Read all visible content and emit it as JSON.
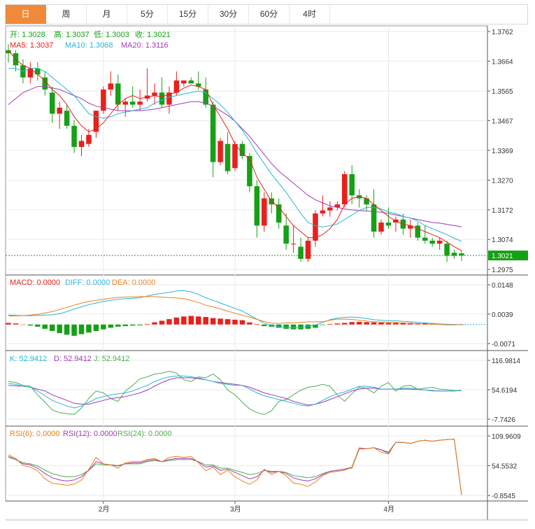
{
  "tabs": [
    {
      "label": "日",
      "active": true
    },
    {
      "label": "周",
      "active": false
    },
    {
      "label": "月",
      "active": false
    },
    {
      "label": "5分",
      "active": false
    },
    {
      "label": "15分",
      "active": false
    },
    {
      "label": "30分",
      "active": false
    },
    {
      "label": "60分",
      "active": false
    },
    {
      "label": "4时",
      "active": false
    }
  ],
  "ohlc_legend": {
    "open": "开: 1.3028",
    "high": "高: 1.3037",
    "low": "低: 1.3003",
    "close": "收: 1.3021"
  },
  "ma_legend": {
    "ma5": "MA5: 1.3037",
    "ma10": "MA10: 1.3068",
    "ma20": "MA20: 1.3116"
  },
  "macd_legend": {
    "macd": "MACD: 0.0000",
    "diff": "DIFF: 0.0000",
    "dea": "DEA: 0.0000"
  },
  "kdj_legend": {
    "k": "K: 52.9412",
    "d": "D: 52.9412",
    "j": "J: 52.9412"
  },
  "rsi_legend": {
    "rsi6": "RSI(6): 0.0000",
    "rsi12": "RSI(12): 0.0000",
    "rsi24": "RSI(24): 0.0000"
  },
  "price_tag": "1.3021",
  "colors": {
    "up": "#e8201c",
    "down": "#16a016",
    "ma5": "#e8201c",
    "ma10": "#27b6d8",
    "ma20": "#a23ab5",
    "tab_active": "#f08a3a",
    "grid": "#e9e9e9"
  },
  "chart_data": [
    {
      "type": "candlestick",
      "title": "",
      "y_ticks": [
        "1.3762",
        "1.3664",
        "1.3565",
        "1.3467",
        "1.3369",
        "1.3270",
        "1.3172",
        "1.3074",
        "1.2975"
      ],
      "x_ticks": [
        "2月",
        "3月",
        "4月"
      ],
      "ylim": [
        1.2975,
        1.3762
      ],
      "last_price": 1.3021,
      "candles": [
        [
          1.37,
          1.372,
          1.366,
          1.369
        ],
        [
          1.369,
          1.37,
          1.363,
          1.365
        ],
        [
          1.365,
          1.367,
          1.359,
          1.361
        ],
        [
          1.361,
          1.366,
          1.359,
          1.364
        ],
        [
          1.364,
          1.366,
          1.36,
          1.362
        ],
        [
          1.361,
          1.363,
          1.355,
          1.357
        ],
        [
          1.356,
          1.358,
          1.346,
          1.349
        ],
        [
          1.349,
          1.353,
          1.344,
          1.351
        ],
        [
          1.35,
          1.352,
          1.344,
          1.345
        ],
        [
          1.345,
          1.347,
          1.336,
          1.338
        ],
        [
          1.338,
          1.342,
          1.335,
          1.34
        ],
        [
          1.339,
          1.344,
          1.338,
          1.342
        ],
        [
          1.343,
          1.35,
          1.341,
          1.35
        ],
        [
          1.35,
          1.358,
          1.349,
          1.357
        ],
        [
          1.357,
          1.363,
          1.355,
          1.359
        ],
        [
          1.359,
          1.362,
          1.35,
          1.352
        ],
        [
          1.352,
          1.354,
          1.348,
          1.353
        ],
        [
          1.353,
          1.358,
          1.351,
          1.352
        ],
        [
          1.352,
          1.357,
          1.35,
          1.353
        ],
        [
          1.354,
          1.364,
          1.353,
          1.355
        ],
        [
          1.355,
          1.359,
          1.352,
          1.356
        ],
        [
          1.356,
          1.361,
          1.351,
          1.352
        ],
        [
          1.352,
          1.358,
          1.349,
          1.356
        ],
        [
          1.356,
          1.363,
          1.355,
          1.36
        ],
        [
          1.359,
          1.36,
          1.358,
          1.36
        ],
        [
          1.36,
          1.361,
          1.359,
          1.359
        ],
        [
          1.359,
          1.363,
          1.357,
          1.358
        ],
        [
          1.357,
          1.361,
          1.351,
          1.352
        ],
        [
          1.352,
          1.353,
          1.328,
          1.333
        ],
        [
          1.333,
          1.341,
          1.332,
          1.34
        ],
        [
          1.339,
          1.343,
          1.329,
          1.33
        ],
        [
          1.331,
          1.34,
          1.33,
          1.339
        ],
        [
          1.339,
          1.34,
          1.334,
          1.335
        ],
        [
          1.335,
          1.336,
          1.323,
          1.325
        ],
        [
          1.325,
          1.327,
          1.308,
          1.312
        ],
        [
          1.312,
          1.323,
          1.31,
          1.321
        ],
        [
          1.321,
          1.323,
          1.316,
          1.319
        ],
        [
          1.319,
          1.321,
          1.311,
          1.313
        ],
        [
          1.312,
          1.316,
          1.304,
          1.306
        ],
        [
          1.306,
          1.312,
          1.303,
          1.306
        ],
        [
          1.305,
          1.308,
          1.3,
          1.301
        ],
        [
          1.301,
          1.308,
          1.3,
          1.307
        ],
        [
          1.307,
          1.317,
          1.305,
          1.316
        ],
        [
          1.316,
          1.322,
          1.315,
          1.317
        ],
        [
          1.317,
          1.32,
          1.315,
          1.318
        ],
        [
          1.318,
          1.32,
          1.317,
          1.319
        ],
        [
          1.319,
          1.33,
          1.318,
          1.329
        ],
        [
          1.329,
          1.332,
          1.319,
          1.322
        ],
        [
          1.322,
          1.324,
          1.318,
          1.321
        ],
        [
          1.321,
          1.322,
          1.317,
          1.319
        ],
        [
          1.319,
          1.324,
          1.308,
          1.31
        ],
        [
          1.31,
          1.314,
          1.309,
          1.313
        ],
        [
          1.313,
          1.318,
          1.311,
          1.312
        ],
        [
          1.313,
          1.315,
          1.31,
          1.314
        ],
        [
          1.314,
          1.316,
          1.309,
          1.311
        ],
        [
          1.311,
          1.314,
          1.308,
          1.312
        ],
        [
          1.312,
          1.313,
          1.307,
          1.308
        ],
        [
          1.308,
          1.312,
          1.306,
          1.307
        ],
        [
          1.307,
          1.308,
          1.305,
          1.306
        ],
        [
          1.306,
          1.308,
          1.304,
          1.307
        ],
        [
          1.306,
          1.307,
          1.3,
          1.302
        ],
        [
          1.303,
          1.304,
          1.301,
          1.302
        ],
        [
          1.3028,
          1.3037,
          1.3003,
          1.3021
        ]
      ],
      "ma5": [
        1.37,
        1.367,
        1.365,
        1.364,
        1.362,
        1.36,
        1.357,
        1.355,
        1.352,
        1.348,
        1.345,
        1.343,
        1.344,
        1.346,
        1.349,
        1.352,
        1.354,
        1.355,
        1.354,
        1.3545,
        1.355,
        1.3545,
        1.3555,
        1.356,
        1.3575,
        1.3585,
        1.358,
        1.357,
        1.352,
        1.348,
        1.344,
        1.339,
        1.336,
        1.334,
        1.328,
        1.324,
        1.32,
        1.318,
        1.315,
        1.312,
        1.31,
        1.308,
        1.308,
        1.309,
        1.311,
        1.314,
        1.319,
        1.321,
        1.3215,
        1.321,
        1.319,
        1.317,
        1.315,
        1.3135,
        1.3125,
        1.312,
        1.311,
        1.31,
        1.309,
        1.308,
        1.3065,
        1.305,
        1.3037
      ],
      "ma10": [
        1.364,
        1.364,
        1.363,
        1.364,
        1.364,
        1.363,
        1.361,
        1.359,
        1.357,
        1.355,
        1.352,
        1.349,
        1.348,
        1.3475,
        1.348,
        1.349,
        1.3495,
        1.35,
        1.3505,
        1.351,
        1.3525,
        1.3535,
        1.3545,
        1.355,
        1.3555,
        1.356,
        1.3565,
        1.356,
        1.354,
        1.352,
        1.3495,
        1.3465,
        1.3435,
        1.34,
        1.336,
        1.3325,
        1.329,
        1.326,
        1.323,
        1.3195,
        1.316,
        1.313,
        1.312,
        1.3115,
        1.312,
        1.3125,
        1.314,
        1.3155,
        1.317,
        1.318,
        1.318,
        1.3175,
        1.3165,
        1.316,
        1.315,
        1.3145,
        1.3135,
        1.312,
        1.311,
        1.31,
        1.309,
        1.3078,
        1.3068
      ],
      "ma20": [
        1.352,
        1.354,
        1.356,
        1.357,
        1.358,
        1.358,
        1.3575,
        1.357,
        1.356,
        1.355,
        1.354,
        1.3525,
        1.3515,
        1.351,
        1.3505,
        1.35,
        1.35,
        1.35,
        1.35,
        1.3502,
        1.3505,
        1.351,
        1.3515,
        1.352,
        1.3525,
        1.353,
        1.353,
        1.3525,
        1.3515,
        1.35,
        1.3485,
        1.3465,
        1.344,
        1.3415,
        1.3385,
        1.3355,
        1.3325,
        1.33,
        1.328,
        1.326,
        1.324,
        1.322,
        1.3205,
        1.3195,
        1.3185,
        1.318,
        1.3175,
        1.3172,
        1.317,
        1.3168,
        1.3166,
        1.3164,
        1.316,
        1.3155,
        1.315,
        1.3145,
        1.314,
        1.3135,
        1.313,
        1.3128,
        1.3124,
        1.312,
        1.3116
      ]
    },
    {
      "type": "bar",
      "title": "MACD",
      "y_ticks": [
        "0.0148",
        "0.0039",
        "-0.0071"
      ],
      "ylim": [
        -0.0071,
        0.0148
      ],
      "macd": [
        0.0006,
        0.0004,
        0.0,
        -0.0004,
        -0.0008,
        -0.0016,
        -0.0024,
        -0.0032,
        -0.0038,
        -0.0042,
        -0.0036,
        -0.003,
        -0.0024,
        -0.0018,
        -0.0012,
        -0.0008,
        -0.0006,
        -0.0004,
        -0.0003,
        0.0002,
        0.0008,
        0.0014,
        0.002,
        0.0026,
        0.003,
        0.0032,
        0.003,
        0.0028,
        0.0024,
        0.0022,
        0.002,
        0.0018,
        0.0016,
        0.0008,
        0.0002,
        -0.0006,
        -0.0008,
        -0.0012,
        -0.0016,
        -0.0018,
        -0.0018,
        -0.0016,
        -0.0012,
        -0.0002,
        0.0002,
        0.0004,
        0.0006,
        0.0009,
        0.001,
        0.0009,
        0.0008,
        0.0007,
        0.0006,
        0.0006,
        0.0007,
        0.0006,
        0.0005,
        0.0005,
        0.0003,
        0.0002,
        0.0002,
        0.0001,
        0.0
      ],
      "diff": [
        0.0035,
        0.0034,
        0.0033,
        0.0033,
        0.0034,
        0.0035,
        0.0036,
        0.004,
        0.0048,
        0.0058,
        0.0066,
        0.0074,
        0.008,
        0.0086,
        0.009,
        0.0094,
        0.0096,
        0.0098,
        0.01,
        0.0106,
        0.0112,
        0.0116,
        0.012,
        0.0125,
        0.0126,
        0.0122,
        0.0112,
        0.01,
        0.009,
        0.008,
        0.007,
        0.006,
        0.005,
        0.0035,
        0.002,
        0.0005,
        -0.0003,
        -0.0008,
        -0.001,
        -0.0012,
        -0.001,
        -0.0006,
        -0.0002,
        0.0008,
        0.0018,
        0.0024,
        0.0026,
        0.0028,
        0.0026,
        0.0022,
        0.0018,
        0.0016,
        0.0014,
        0.0014,
        0.0012,
        0.001,
        0.0008,
        0.0006,
        0.0004,
        0.0002,
        0.0001,
        0.0,
        0.0
      ],
      "dea": [
        0.0032,
        0.0032,
        0.0033,
        0.0035,
        0.0038,
        0.0043,
        0.0048,
        0.0056,
        0.0064,
        0.0072,
        0.008,
        0.0086,
        0.009,
        0.0094,
        0.0098,
        0.0101,
        0.0102,
        0.0103,
        0.0104,
        0.0104,
        0.0104,
        0.0102,
        0.01,
        0.0099,
        0.0096,
        0.009,
        0.0082,
        0.0072,
        0.0066,
        0.0058,
        0.005,
        0.0042,
        0.0034,
        0.0028,
        0.0019,
        0.0011,
        0.0005,
        0.0004,
        0.0006,
        0.0006,
        0.0008,
        0.001,
        0.001,
        0.001,
        0.0016,
        0.002,
        0.002,
        0.0019,
        0.0016,
        0.0013,
        0.001,
        0.0009,
        0.0008,
        0.0008,
        0.0005,
        0.0004,
        0.0003,
        0.0001,
        0.0001,
        0.0,
        -0.0001,
        -0.0001,
        0.0
      ]
    },
    {
      "type": "line",
      "title": "KDJ",
      "y_ticks": [
        "116.9814",
        "54.6194",
        "-7.7426"
      ],
      "ylim": [
        -7.7426,
        116.9814
      ],
      "k": [
        68,
        66,
        62,
        60,
        52,
        42,
        32,
        26,
        20,
        16,
        20,
        28,
        36,
        40,
        44,
        46,
        48,
        52,
        58,
        64,
        72,
        78,
        82,
        84,
        84,
        82,
        80,
        76,
        72,
        68,
        66,
        64,
        64,
        56,
        48,
        42,
        38,
        34,
        30,
        26,
        22,
        20,
        24,
        32,
        40,
        46,
        50,
        56,
        62,
        62,
        60,
        56,
        56,
        56,
        58,
        58,
        56,
        54,
        52,
        52,
        52,
        52,
        53
      ],
      "d": [
        64,
        63,
        62,
        60,
        56,
        52,
        44,
        38,
        32,
        26,
        24,
        24,
        28,
        32,
        36,
        38,
        40,
        44,
        48,
        54,
        62,
        70,
        76,
        80,
        80,
        80,
        78,
        76,
        72,
        70,
        68,
        66,
        64,
        60,
        54,
        48,
        44,
        40,
        36,
        30,
        26,
        22,
        24,
        28,
        34,
        40,
        46,
        52,
        56,
        58,
        58,
        56,
        56,
        56,
        56,
        56,
        55,
        54,
        53,
        52,
        52,
        52,
        53
      ],
      "j": [
        72,
        70,
        64,
        62,
        44,
        28,
        12,
        6,
        4,
        2,
        16,
        36,
        52,
        48,
        36,
        30,
        52,
        64,
        78,
        82,
        88,
        90,
        94,
        90,
        76,
        72,
        82,
        80,
        88,
        76,
        54,
        44,
        28,
        14,
        6,
        2,
        10,
        30,
        34,
        44,
        54,
        60,
        62,
        66,
        62,
        44,
        30,
        46,
        60,
        58,
        48,
        62,
        70,
        52,
        62,
        64,
        56,
        58,
        60,
        56,
        55,
        53,
        53
      ]
    },
    {
      "type": "line",
      "title": "RSI",
      "y_ticks": [
        "109.9609",
        "54.5532",
        "-0.8545"
      ],
      "ylim": [
        -0.8545,
        109.9609
      ],
      "rsi6": [
        75,
        68,
        55,
        52,
        45,
        30,
        22,
        20,
        18,
        20,
        28,
        48,
        70,
        58,
        56,
        50,
        60,
        62,
        62,
        66,
        68,
        62,
        70,
        72,
        70,
        72,
        60,
        45,
        52,
        38,
        46,
        34,
        26,
        20,
        28,
        48,
        38,
        44,
        36,
        22,
        20,
        16,
        24,
        36,
        42,
        44,
        46,
        52,
        88,
        86,
        88,
        80,
        76,
        98,
        98,
        96,
        100,
        102,
        100,
        102,
        103,
        104,
        0
      ],
      "rsi12": [
        72,
        66,
        58,
        56,
        50,
        40,
        32,
        28,
        26,
        28,
        34,
        46,
        62,
        58,
        56,
        54,
        58,
        60,
        60,
        64,
        66,
        62,
        66,
        68,
        68,
        68,
        62,
        52,
        54,
        46,
        48,
        42,
        36,
        30,
        34,
        46,
        42,
        44,
        40,
        32,
        28,
        26,
        30,
        38,
        44,
        46,
        48,
        52,
        86,
        86,
        88,
        84,
        78,
        98,
        98,
        96,
        100,
        102,
        100,
        102,
        103,
        104,
        0
      ],
      "rsi24": [
        70,
        66,
        60,
        58,
        54,
        46,
        40,
        36,
        34,
        34,
        38,
        46,
        58,
        56,
        56,
        55,
        58,
        58,
        58,
        62,
        64,
        62,
        64,
        66,
        66,
        66,
        62,
        56,
        56,
        50,
        50,
        46,
        42,
        38,
        40,
        46,
        44,
        44,
        42,
        36,
        34,
        32,
        34,
        40,
        44,
        46,
        48,
        50,
        86,
        86,
        88,
        84,
        80,
        98,
        98,
        96,
        100,
        102,
        100,
        102,
        103,
        104,
        0
      ]
    }
  ]
}
